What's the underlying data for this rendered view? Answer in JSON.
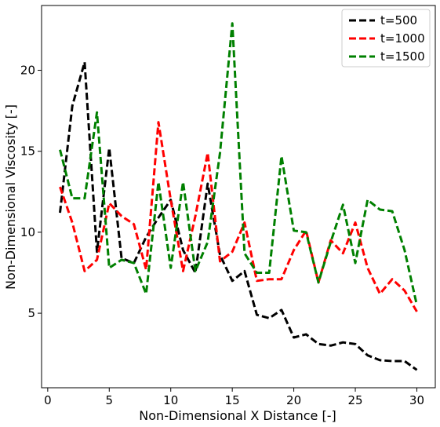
{
  "chart_data": {
    "type": "line",
    "title": "",
    "xlabel": "Non-Dimensional X Distance [-]",
    "ylabel": "Non-Dimensional Viscosity [-]",
    "xlim": [
      -0.5,
      31.5
    ],
    "ylim": [
      0.4,
      24.0
    ],
    "xticks": [
      0,
      5,
      10,
      15,
      20,
      25,
      30
    ],
    "yticks": [
      5,
      10,
      15,
      20
    ],
    "grid": false,
    "legend_position": "top-right",
    "line_style": "dashed",
    "x": [
      1,
      2,
      3,
      4,
      5,
      6,
      7,
      8,
      9,
      10,
      11,
      12,
      13,
      14,
      15,
      16,
      17,
      18,
      19,
      20,
      21,
      22,
      23,
      24,
      25,
      26,
      27,
      28,
      29,
      30
    ],
    "series": [
      {
        "name": "t=500",
        "color": "#000000",
        "values": [
          11.2,
          17.8,
          20.5,
          8.8,
          15.2,
          8.4,
          8.1,
          9.7,
          10.9,
          12.0,
          8.9,
          7.5,
          13.0,
          8.6,
          7.0,
          7.6,
          4.9,
          4.7,
          5.2,
          3.5,
          3.7,
          3.1,
          3.0,
          3.2,
          3.1,
          2.4,
          2.1,
          2.05,
          2.05,
          1.5
        ]
      },
      {
        "name": "t=1000",
        "color": "#ff0000",
        "values": [
          12.8,
          10.6,
          7.6,
          8.3,
          11.8,
          11.0,
          10.5,
          7.7,
          16.8,
          12.0,
          7.6,
          11.0,
          14.9,
          8.2,
          8.8,
          10.6,
          7.0,
          7.1,
          7.1,
          8.9,
          10.1,
          6.9,
          9.5,
          8.7,
          10.6,
          7.8,
          6.2,
          7.1,
          6.4,
          5.1
        ]
      },
      {
        "name": "t=1500",
        "color": "#008000",
        "values": [
          15.1,
          12.1,
          12.1,
          17.4,
          7.8,
          8.3,
          8.1,
          6.2,
          13.1,
          7.8,
          13.1,
          7.6,
          9.4,
          14.9,
          22.9,
          8.7,
          7.5,
          7.5,
          14.7,
          10.1,
          10.0,
          6.9,
          9.4,
          11.7,
          8.1,
          12.0,
          11.4,
          11.3,
          8.9,
          5.5
        ]
      }
    ]
  }
}
